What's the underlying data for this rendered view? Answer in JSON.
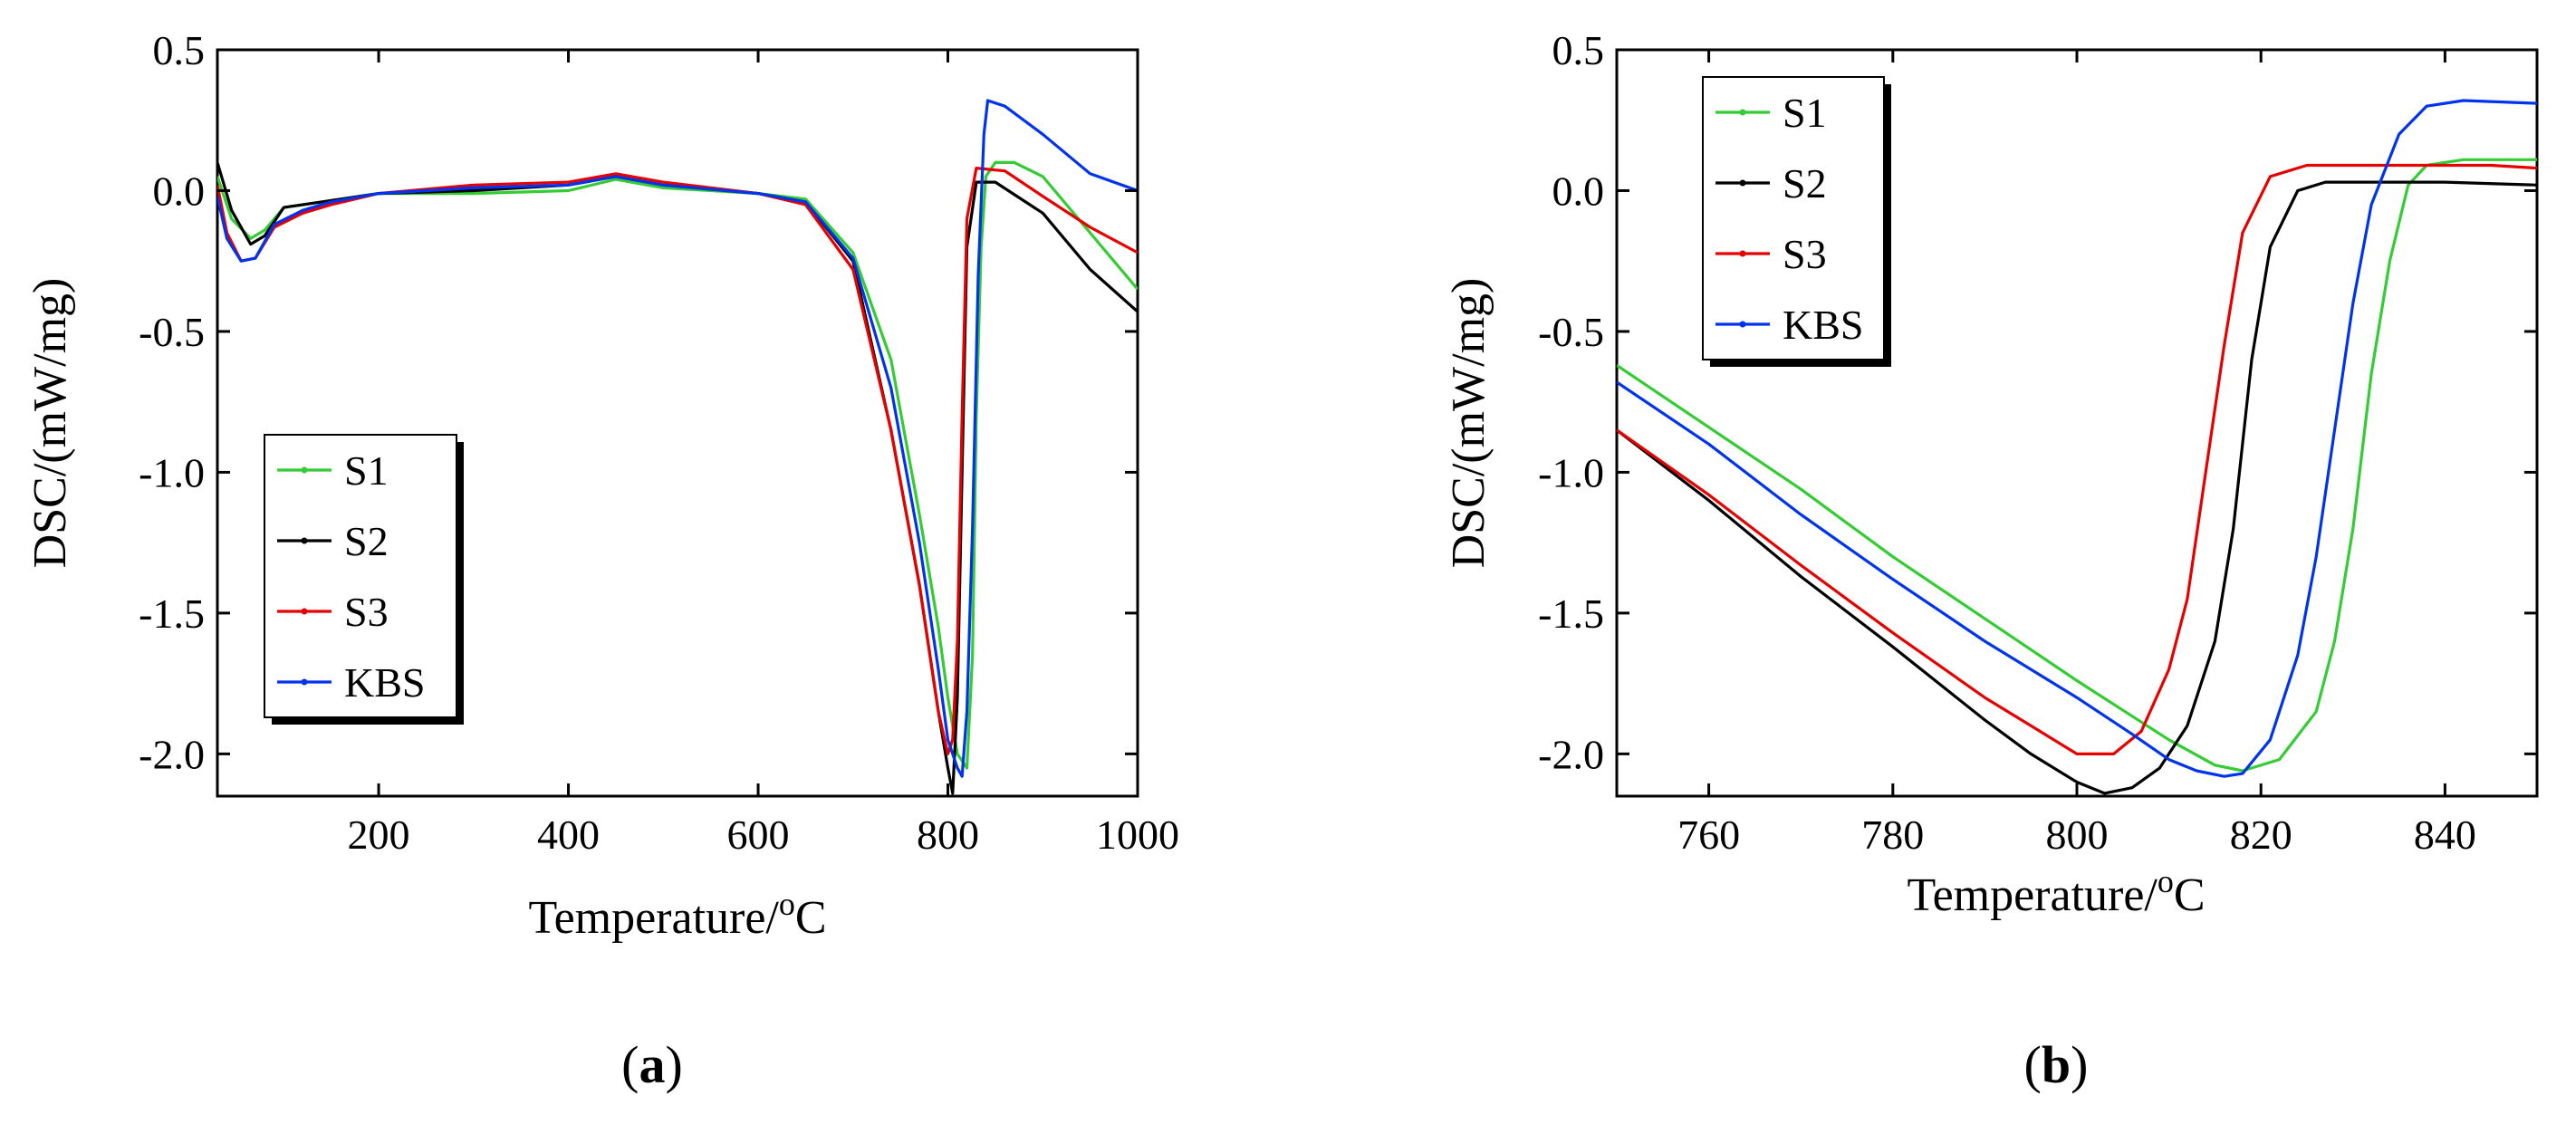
{
  "chart_data": [
    {
      "type": "line",
      "panel_label": "a",
      "xlabel": "Temperature/",
      "xlabel_sup": "o",
      "xlabel_unit": "C",
      "ylabel": "DSC/(mW/mg)",
      "xlim": [
        30,
        1000
      ],
      "ylim": [
        -2.15,
        0.5
      ],
      "xticks": [
        200,
        400,
        600,
        800,
        1000
      ],
      "xtick_labels": [
        "200",
        "400",
        "600",
        "800",
        "1000"
      ],
      "yticks": [
        0.5,
        0.0,
        -0.5,
        -1.0,
        -1.5,
        -2.0
      ],
      "ytick_labels": [
        "0.5",
        "0.0",
        "-0.5",
        "-1.0",
        "-1.5",
        "-2.0"
      ],
      "legend_position": "lower-left",
      "series": [
        {
          "name": "S1",
          "color": "#33cc33",
          "points": [
            [
              30,
              0.05
            ],
            [
              45,
              -0.1
            ],
            [
              65,
              -0.17
            ],
            [
              80,
              -0.14
            ],
            [
              100,
              -0.06
            ],
            [
              140,
              -0.04
            ],
            [
              200,
              -0.01
            ],
            [
              300,
              -0.01
            ],
            [
              400,
              0.0
            ],
            [
              450,
              0.04
            ],
            [
              500,
              0.01
            ],
            [
              600,
              -0.01
            ],
            [
              650,
              -0.03
            ],
            [
              700,
              -0.22
            ],
            [
              740,
              -0.6
            ],
            [
              770,
              -1.15
            ],
            [
              790,
              -1.55
            ],
            [
              800,
              -1.8
            ],
            [
              810,
              -2.0
            ],
            [
              820,
              -2.05
            ],
            [
              826,
              -1.65
            ],
            [
              830,
              -0.8
            ],
            [
              835,
              -0.2
            ],
            [
              840,
              0.05
            ],
            [
              850,
              0.1
            ],
            [
              870,
              0.1
            ],
            [
              900,
              0.05
            ],
            [
              950,
              -0.15
            ],
            [
              1000,
              -0.35
            ]
          ]
        },
        {
          "name": "S2",
          "color": "#000000",
          "points": [
            [
              30,
              0.1
            ],
            [
              45,
              -0.07
            ],
            [
              65,
              -0.19
            ],
            [
              80,
              -0.16
            ],
            [
              100,
              -0.06
            ],
            [
              140,
              -0.04
            ],
            [
              200,
              -0.01
            ],
            [
              300,
              0.0
            ],
            [
              400,
              0.02
            ],
            [
              450,
              0.05
            ],
            [
              500,
              0.02
            ],
            [
              600,
              -0.01
            ],
            [
              650,
              -0.04
            ],
            [
              700,
              -0.25
            ],
            [
              740,
              -0.85
            ],
            [
              770,
              -1.4
            ],
            [
              790,
              -1.85
            ],
            [
              800,
              -2.05
            ],
            [
              805,
              -2.14
            ],
            [
              810,
              -1.8
            ],
            [
              815,
              -1.0
            ],
            [
              820,
              -0.2
            ],
            [
              830,
              0.03
            ],
            [
              850,
              0.03
            ],
            [
              900,
              -0.08
            ],
            [
              950,
              -0.28
            ],
            [
              1000,
              -0.43
            ]
          ]
        },
        {
          "name": "S3",
          "color": "#e60000",
          "points": [
            [
              30,
              0.02
            ],
            [
              40,
              -0.15
            ],
            [
              55,
              -0.25
            ],
            [
              70,
              -0.24
            ],
            [
              90,
              -0.13
            ],
            [
              120,
              -0.08
            ],
            [
              150,
              -0.05
            ],
            [
              200,
              -0.01
            ],
            [
              300,
              0.02
            ],
            [
              400,
              0.03
            ],
            [
              450,
              0.06
            ],
            [
              500,
              0.03
            ],
            [
              600,
              -0.01
            ],
            [
              650,
              -0.05
            ],
            [
              700,
              -0.28
            ],
            [
              740,
              -0.85
            ],
            [
              770,
              -1.4
            ],
            [
              790,
              -1.85
            ],
            [
              800,
              -2.0
            ],
            [
              805,
              -1.95
            ],
            [
              810,
              -1.6
            ],
            [
              815,
              -0.8
            ],
            [
              820,
              -0.1
            ],
            [
              830,
              0.08
            ],
            [
              860,
              0.07
            ],
            [
              900,
              -0.02
            ],
            [
              950,
              -0.13
            ],
            [
              1000,
              -0.22
            ]
          ]
        },
        {
          "name": "KBS",
          "color": "#0033ee",
          "points": [
            [
              30,
              -0.02
            ],
            [
              40,
              -0.17
            ],
            [
              55,
              -0.25
            ],
            [
              70,
              -0.24
            ],
            [
              90,
              -0.12
            ],
            [
              120,
              -0.07
            ],
            [
              150,
              -0.04
            ],
            [
              200,
              -0.01
            ],
            [
              300,
              0.01
            ],
            [
              400,
              0.02
            ],
            [
              450,
              0.05
            ],
            [
              500,
              0.02
            ],
            [
              600,
              -0.01
            ],
            [
              650,
              -0.04
            ],
            [
              700,
              -0.24
            ],
            [
              740,
              -0.7
            ],
            [
              770,
              -1.25
            ],
            [
              790,
              -1.7
            ],
            [
              800,
              -1.95
            ],
            [
              810,
              -2.05
            ],
            [
              815,
              -2.08
            ],
            [
              820,
              -1.85
            ],
            [
              826,
              -1.2
            ],
            [
              832,
              -0.3
            ],
            [
              838,
              0.2
            ],
            [
              842,
              0.32
            ],
            [
              860,
              0.3
            ],
            [
              900,
              0.2
            ],
            [
              950,
              0.06
            ],
            [
              1000,
              0.0
            ]
          ]
        }
      ]
    },
    {
      "type": "line",
      "panel_label": "b",
      "xlabel": "Temperature/",
      "xlabel_sup": "o",
      "xlabel_unit": "C",
      "ylabel": "DSC/(mW/mg)",
      "xlim": [
        750,
        850
      ],
      "ylim": [
        -2.15,
        0.5
      ],
      "xticks": [
        760,
        780,
        800,
        820,
        840
      ],
      "xtick_labels": [
        "760",
        "780",
        "800",
        "820",
        "840"
      ],
      "yticks": [
        0.5,
        0.0,
        -0.5,
        -1.0,
        -1.5,
        -2.0
      ],
      "ytick_labels": [
        "0.5",
        "0.0",
        "-0.5",
        "-1.0",
        "-1.5",
        "-2.0"
      ],
      "legend_position": "top-left",
      "series": [
        {
          "name": "S1",
          "color": "#33cc33",
          "points": [
            [
              750,
              -0.62
            ],
            [
              760,
              -0.84
            ],
            [
              770,
              -1.06
            ],
            [
              780,
              -1.3
            ],
            [
              790,
              -1.52
            ],
            [
              800,
              -1.74
            ],
            [
              810,
              -1.95
            ],
            [
              815,
              -2.04
            ],
            [
              818,
              -2.06
            ],
            [
              822,
              -2.02
            ],
            [
              826,
              -1.85
            ],
            [
              828,
              -1.6
            ],
            [
              830,
              -1.2
            ],
            [
              832,
              -0.65
            ],
            [
              834,
              -0.25
            ],
            [
              836,
              0.02
            ],
            [
              838,
              0.09
            ],
            [
              842,
              0.11
            ],
            [
              850,
              0.11
            ]
          ]
        },
        {
          "name": "S2",
          "color": "#000000",
          "points": [
            [
              750,
              -0.85
            ],
            [
              760,
              -1.1
            ],
            [
              770,
              -1.37
            ],
            [
              780,
              -1.62
            ],
            [
              790,
              -1.88
            ],
            [
              795,
              -2.0
            ],
            [
              800,
              -2.1
            ],
            [
              803,
              -2.14
            ],
            [
              806,
              -2.12
            ],
            [
              809,
              -2.05
            ],
            [
              812,
              -1.9
            ],
            [
              815,
              -1.6
            ],
            [
              817,
              -1.2
            ],
            [
              819,
              -0.6
            ],
            [
              821,
              -0.2
            ],
            [
              824,
              0.0
            ],
            [
              827,
              0.03
            ],
            [
              840,
              0.03
            ],
            [
              850,
              0.02
            ]
          ]
        },
        {
          "name": "S3",
          "color": "#e60000",
          "points": [
            [
              750,
              -0.85
            ],
            [
              760,
              -1.08
            ],
            [
              770,
              -1.33
            ],
            [
              780,
              -1.57
            ],
            [
              790,
              -1.8
            ],
            [
              795,
              -1.9
            ],
            [
              800,
              -2.0
            ],
            [
              804,
              -2.0
            ],
            [
              807,
              -1.92
            ],
            [
              810,
              -1.7
            ],
            [
              812,
              -1.45
            ],
            [
              814,
              -1.0
            ],
            [
              816,
              -0.55
            ],
            [
              818,
              -0.15
            ],
            [
              821,
              0.05
            ],
            [
              825,
              0.09
            ],
            [
              835,
              0.09
            ],
            [
              845,
              0.09
            ],
            [
              850,
              0.08
            ]
          ]
        },
        {
          "name": "KBS",
          "color": "#0033ee",
          "points": [
            [
              750,
              -0.68
            ],
            [
              760,
              -0.9
            ],
            [
              770,
              -1.15
            ],
            [
              780,
              -1.38
            ],
            [
              790,
              -1.6
            ],
            [
              800,
              -1.8
            ],
            [
              806,
              -1.93
            ],
            [
              810,
              -2.02
            ],
            [
              813,
              -2.06
            ],
            [
              816,
              -2.08
            ],
            [
              818,
              -2.07
            ],
            [
              821,
              -1.95
            ],
            [
              824,
              -1.65
            ],
            [
              826,
              -1.3
            ],
            [
              828,
              -0.85
            ],
            [
              830,
              -0.4
            ],
            [
              832,
              -0.05
            ],
            [
              835,
              0.2
            ],
            [
              838,
              0.3
            ],
            [
              842,
              0.32
            ],
            [
              850,
              0.31
            ]
          ]
        }
      ]
    }
  ]
}
